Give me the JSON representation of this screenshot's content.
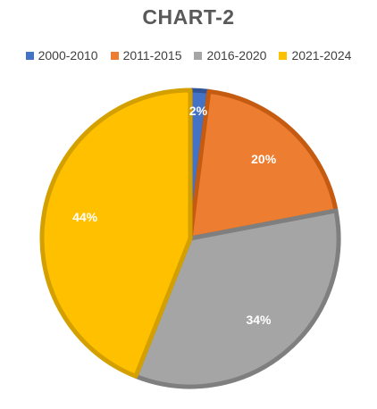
{
  "chart_data": {
    "type": "pie",
    "title": "CHART-2",
    "categories": [
      "2000-2010",
      "2011-2015",
      "2016-2020",
      "2021-2024"
    ],
    "values": [
      2,
      20,
      34,
      44
    ],
    "value_labels": [
      "2%",
      "20%",
      "34%",
      "44%"
    ],
    "colors": [
      "#4472C4",
      "#ED7D31",
      "#A5A5A5",
      "#FFC000"
    ],
    "border_colors": [
      "#2F5597",
      "#C55A11",
      "#7F7F7F",
      "#D4A000"
    ],
    "legend_position": "top"
  }
}
